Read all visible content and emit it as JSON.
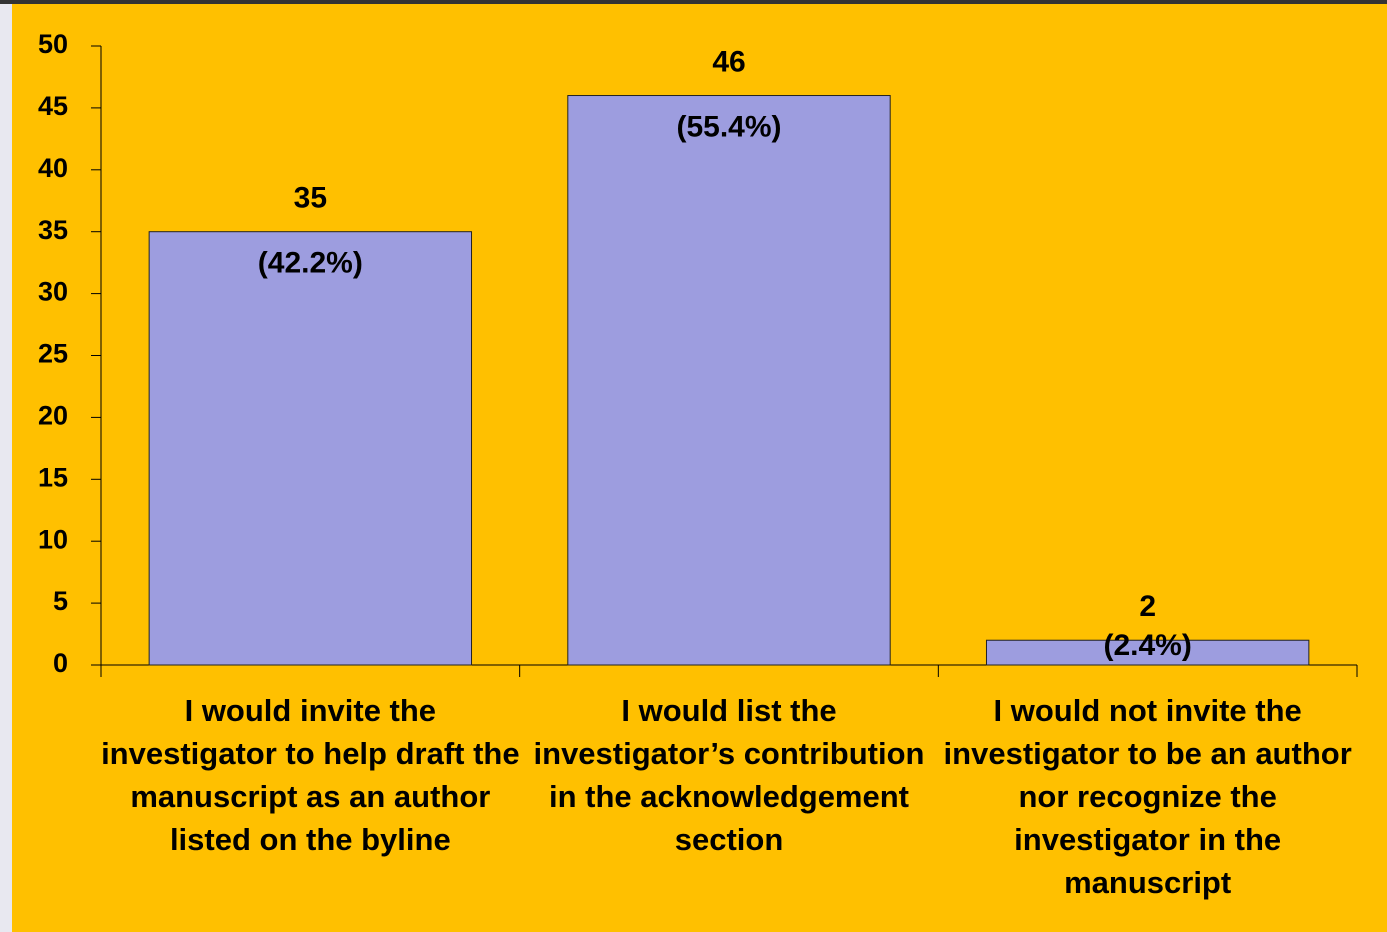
{
  "chart_data": {
    "type": "bar",
    "categories": [
      "I would invite the investigator to help draft the manuscript as an author listed on the byline",
      "I would list the investigator’s contribution in the acknowledgement section",
      "I would not invite the investigator to be an author nor recognize the investigator in the manuscript"
    ],
    "values": [
      35,
      46,
      2
    ],
    "percent_labels": [
      "(42.2%)",
      "(55.4%)",
      "(2.4%)"
    ],
    "color": "#9d9ddf",
    "ylim": [
      0,
      50
    ],
    "yticks": [
      0,
      5,
      10,
      15,
      20,
      25,
      30,
      35,
      40,
      45,
      50
    ],
    "grid": false
  }
}
